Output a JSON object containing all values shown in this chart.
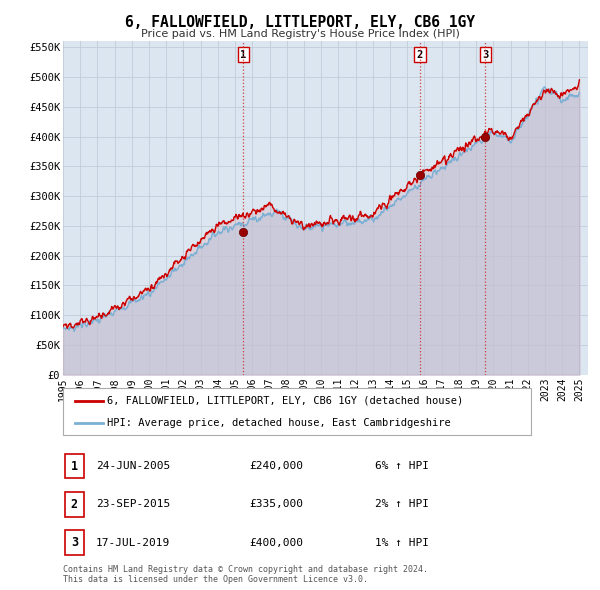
{
  "title": "6, FALLOWFIELD, LITTLEPORT, ELY, CB6 1GY",
  "subtitle": "Price paid vs. HM Land Registry's House Price Index (HPI)",
  "bg_color": "#ffffff",
  "plot_bg_color": "#dce6f0",
  "grid_color": "#c0ccd8",
  "ylim": [
    0,
    560000
  ],
  "yticks": [
    0,
    50000,
    100000,
    150000,
    200000,
    250000,
    300000,
    350000,
    400000,
    450000,
    500000,
    550000
  ],
  "ytick_labels": [
    "£0",
    "£50K",
    "£100K",
    "£150K",
    "£200K",
    "£250K",
    "£300K",
    "£350K",
    "£400K",
    "£450K",
    "£500K",
    "£550K"
  ],
  "xlim_start": 1995.0,
  "xlim_end": 2025.5,
  "xticks": [
    1995,
    1996,
    1997,
    1998,
    1999,
    2000,
    2001,
    2002,
    2003,
    2004,
    2005,
    2006,
    2007,
    2008,
    2009,
    2010,
    2011,
    2012,
    2013,
    2014,
    2015,
    2016,
    2017,
    2018,
    2019,
    2020,
    2021,
    2022,
    2023,
    2024,
    2025
  ],
  "sale_color": "#cc0000",
  "hpi_color": "#7bafd4",
  "hpi_fill_color": "#c5d8ec",
  "sale_dot_color": "#990000",
  "vline_color": "#cc2222",
  "transactions": [
    {
      "label": "1",
      "year": 2005.48,
      "price": 240000,
      "date": "24-JUN-2005",
      "pct": "6%",
      "dir": "↑"
    },
    {
      "label": "2",
      "year": 2015.73,
      "price": 335000,
      "date": "23-SEP-2015",
      "pct": "2%",
      "dir": "↑"
    },
    {
      "label": "3",
      "year": 2019.54,
      "price": 400000,
      "date": "17-JUL-2019",
      "pct": "1%",
      "dir": "↑"
    }
  ],
  "legend_sale_label": "6, FALLOWFIELD, LITTLEPORT, ELY, CB6 1GY (detached house)",
  "legend_hpi_label": "HPI: Average price, detached house, East Cambridgeshire",
  "footer": "Contains HM Land Registry data © Crown copyright and database right 2024.\nThis data is licensed under the Open Government Licence v3.0."
}
